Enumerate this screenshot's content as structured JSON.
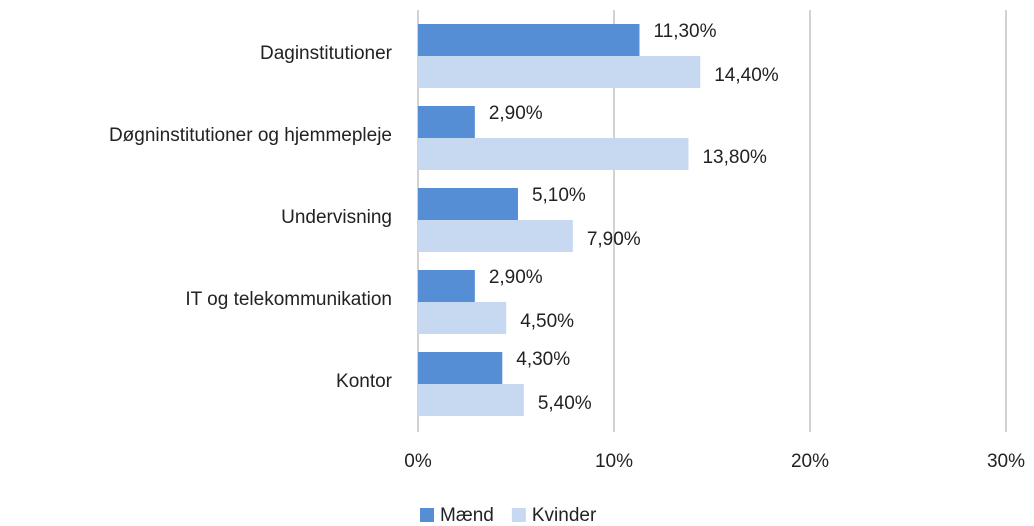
{
  "chart_data": {
    "type": "hbar",
    "categories": [
      "Daginstitutioner",
      "Døgninstitutioner og hjemmepleje",
      "Undervisning",
      "IT og telekommunikation",
      "Kontor"
    ],
    "series": [
      {
        "name": "Mænd",
        "color": "#558ed5",
        "values": [
          11.3,
          2.9,
          5.1,
          2.9,
          4.3
        ],
        "value_labels": [
          "11,30%",
          "2,90%",
          "5,10%",
          "2,90%",
          "4,30%"
        ]
      },
      {
        "name": "Kvinder",
        "color": "#c6d9f1",
        "values": [
          14.4,
          13.8,
          7.9,
          4.5,
          5.4
        ],
        "value_labels": [
          "14,40%",
          "13,80%",
          "7,90%",
          "4,50%",
          "5,40%"
        ]
      }
    ],
    "xlim": [
      0,
      30
    ],
    "xticks": [
      {
        "value": 0,
        "label": "0%"
      },
      {
        "value": 10,
        "label": "10%"
      },
      {
        "value": 20,
        "label": "20%"
      },
      {
        "value": 30,
        "label": "30%"
      }
    ],
    "grid": true,
    "legend": "bottom"
  }
}
